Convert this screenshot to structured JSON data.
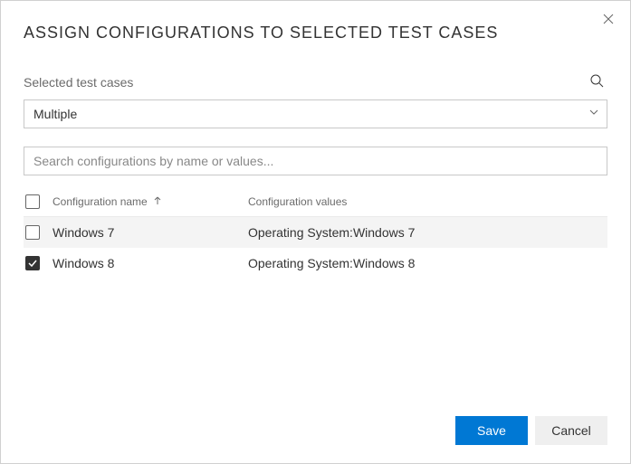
{
  "dialog": {
    "title": "ASSIGN CONFIGURATIONS TO SELECTED TEST CASES"
  },
  "testCases": {
    "label": "Selected test cases",
    "dropdown_value": "Multiple"
  },
  "search": {
    "placeholder": "Search configurations by name or values..."
  },
  "table": {
    "columns": {
      "name": "Configuration name",
      "values": "Configuration values"
    },
    "rows": [
      {
        "checked": false,
        "highlighted": true,
        "name": "Windows 7",
        "values": "Operating System:Windows 7"
      },
      {
        "checked": true,
        "highlighted": false,
        "name": "Windows 8",
        "values": "Operating System:Windows 8"
      }
    ]
  },
  "footer": {
    "save": "Save",
    "cancel": "Cancel"
  },
  "colors": {
    "primary": "#0078d4",
    "border": "#c8c8c8",
    "text": "#333333",
    "muted": "#6b6b6b",
    "highlight": "#f4f4f4"
  }
}
